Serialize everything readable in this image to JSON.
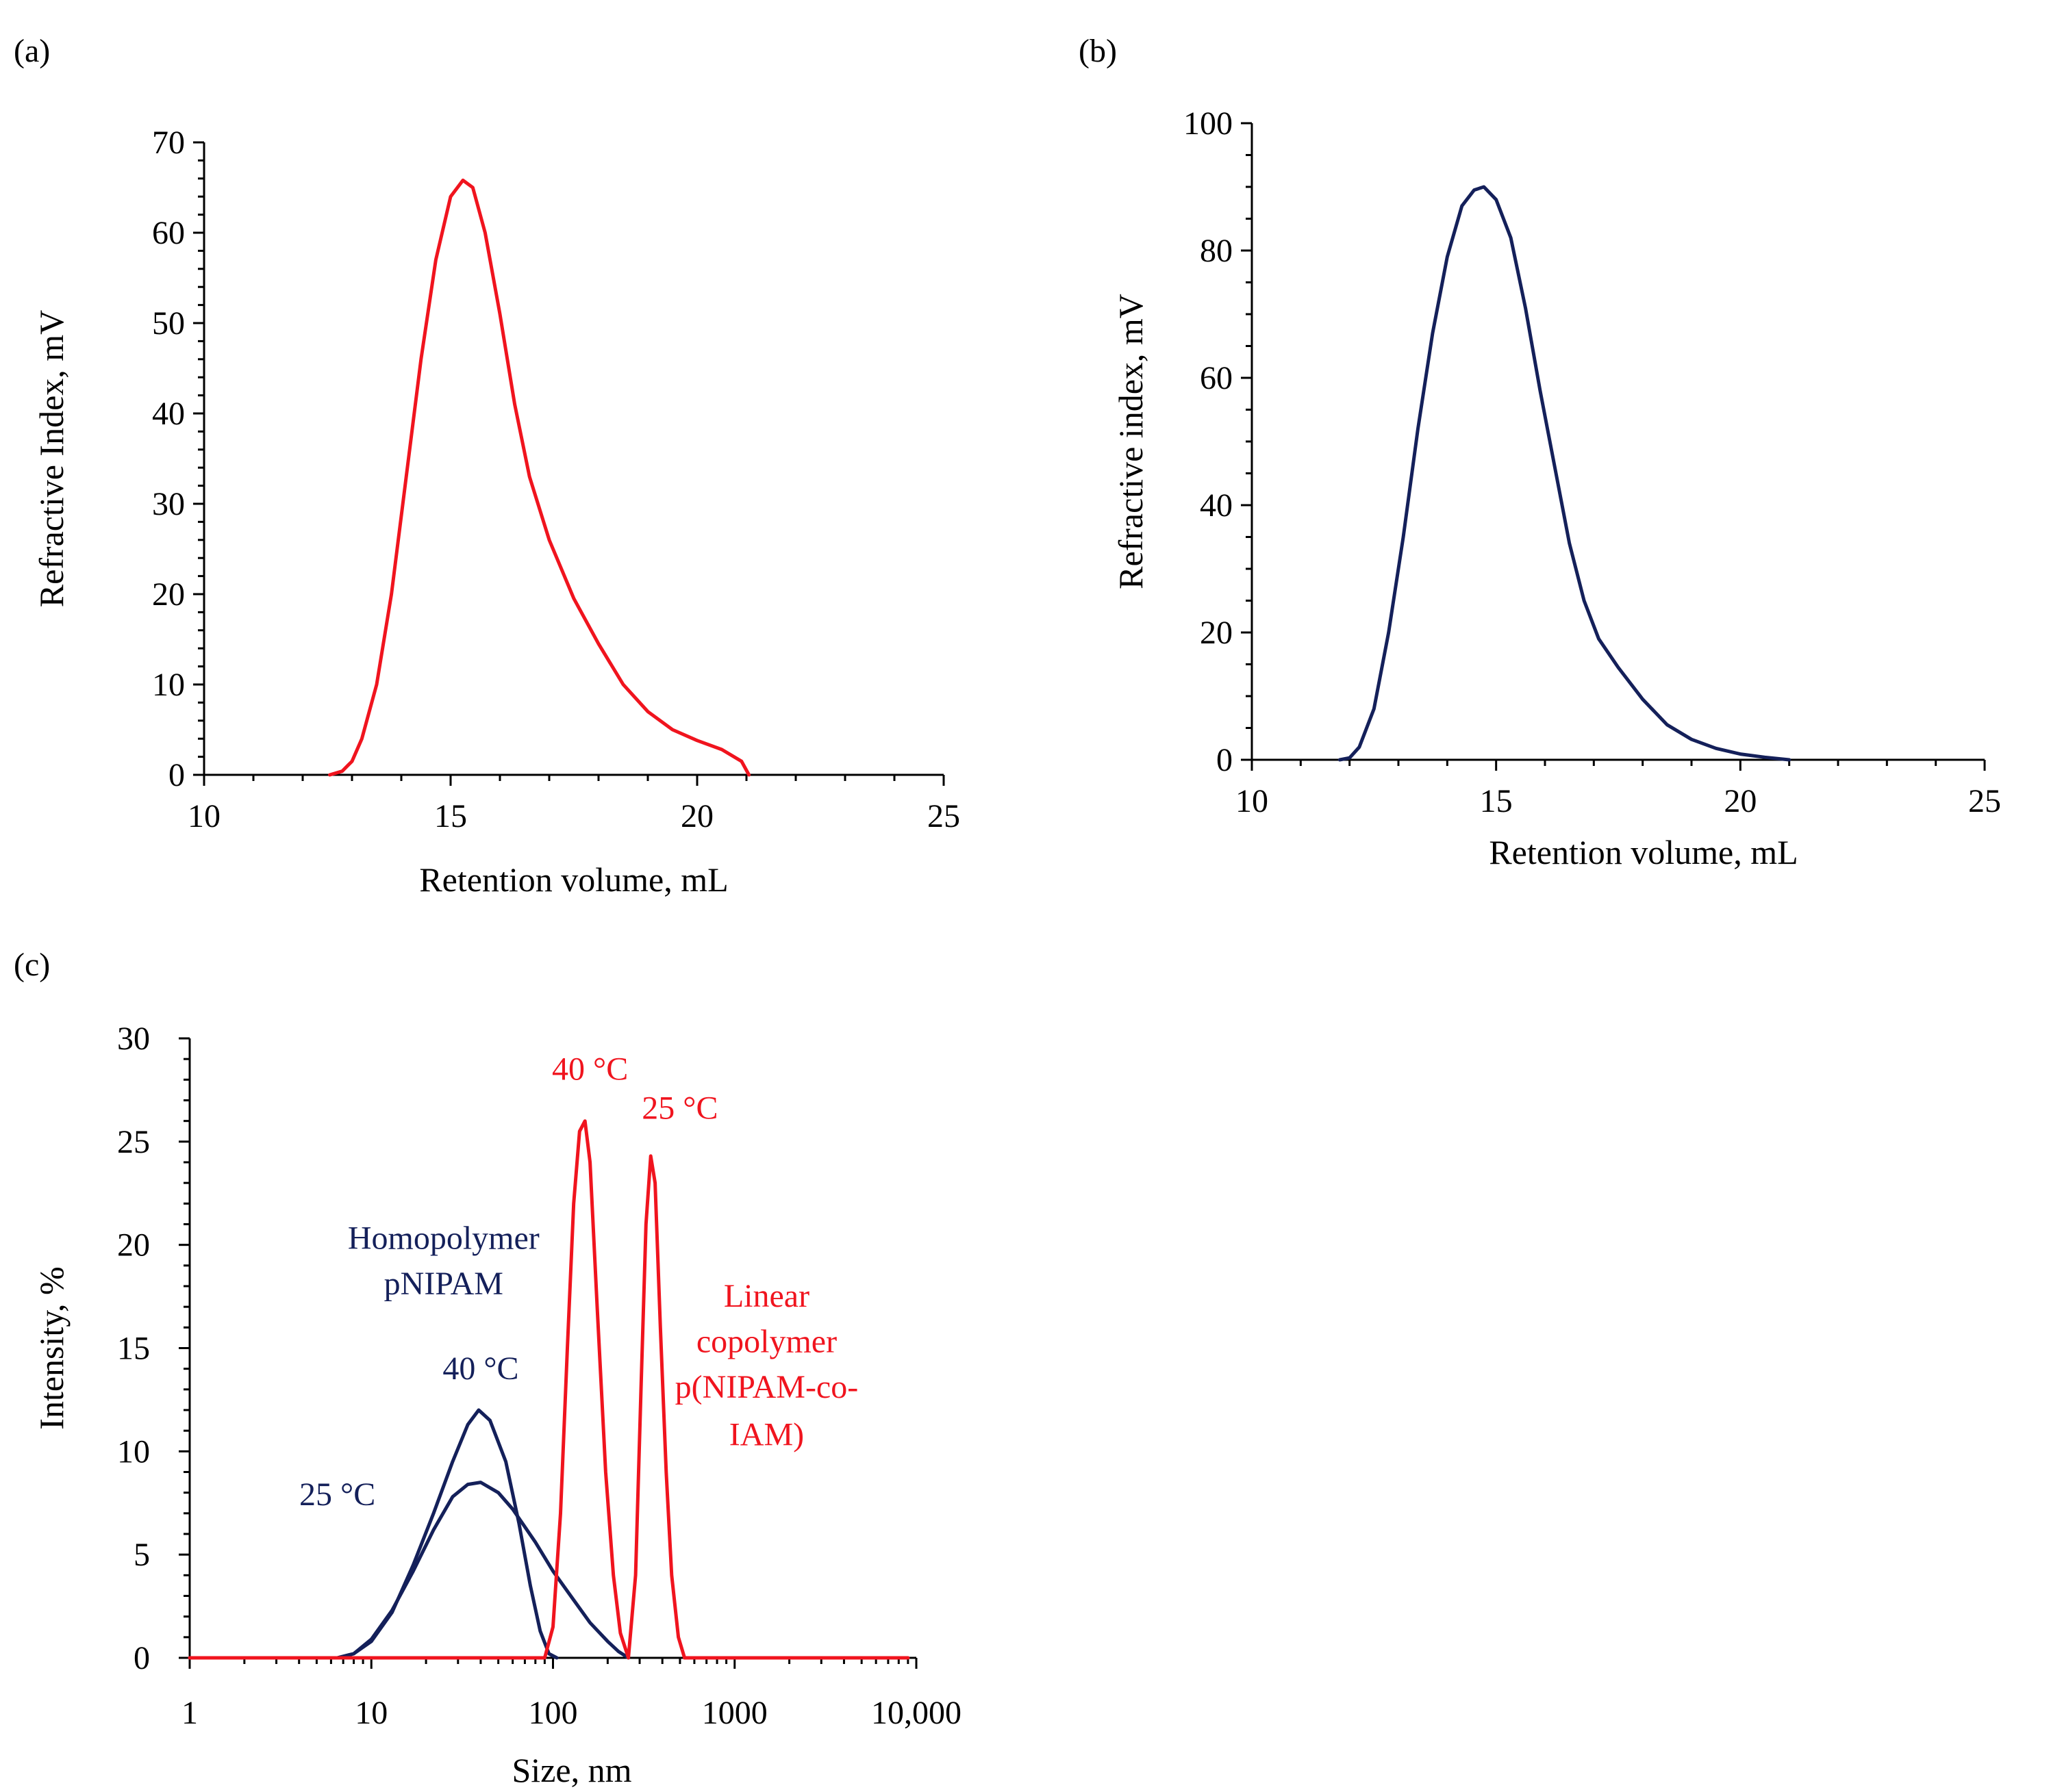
{
  "colors": {
    "red": "#f0141e",
    "navy": "#14205a",
    "axis": "#000000"
  },
  "chart_data": [
    {
      "panel_label": "(a)",
      "type": "line",
      "xlabel": "Retention volume, mL",
      "ylabel": "Refractive Index, mV",
      "xlim": [
        10,
        25
      ],
      "ylim": [
        0,
        70
      ],
      "x_ticks": [
        10,
        15,
        20,
        25
      ],
      "x_minor_step": 1,
      "y_ticks": [
        0,
        10,
        20,
        30,
        40,
        50,
        60,
        70
      ],
      "y_minor_step": 2,
      "series": [
        {
          "color": "red",
          "points": [
            [
              12.55,
              0
            ],
            [
              12.8,
              0.4
            ],
            [
              13.0,
              1.5
            ],
            [
              13.2,
              4
            ],
            [
              13.5,
              10
            ],
            [
              13.8,
              20
            ],
            [
              14.1,
              33
            ],
            [
              14.4,
              46
            ],
            [
              14.7,
              57
            ],
            [
              15.0,
              64
            ],
            [
              15.25,
              65.8
            ],
            [
              15.45,
              65
            ],
            [
              15.7,
              60
            ],
            [
              16.0,
              51
            ],
            [
              16.3,
              41
            ],
            [
              16.6,
              33
            ],
            [
              17.0,
              26
            ],
            [
              17.5,
              19.5
            ],
            [
              18.0,
              14.5
            ],
            [
              18.5,
              10
            ],
            [
              19.0,
              7
            ],
            [
              19.5,
              5
            ],
            [
              20.0,
              3.8
            ],
            [
              20.5,
              2.8
            ],
            [
              20.9,
              1.5
            ],
            [
              21.05,
              0
            ]
          ]
        }
      ]
    },
    {
      "panel_label": "(b)",
      "type": "line",
      "xlabel": "Retention volume, mL",
      "ylabel": "Refractive index, mV",
      "xlim": [
        10,
        25
      ],
      "ylim": [
        0,
        100
      ],
      "x_ticks": [
        10,
        15,
        20,
        25
      ],
      "x_minor_step": 1,
      "y_ticks": [
        0,
        20,
        40,
        60,
        80,
        100
      ],
      "y_minor_step": 5,
      "series": [
        {
          "color": "navy",
          "points": [
            [
              11.8,
              0
            ],
            [
              12.0,
              0.3
            ],
            [
              12.2,
              2
            ],
            [
              12.5,
              8
            ],
            [
              12.8,
              20
            ],
            [
              13.1,
              35
            ],
            [
              13.4,
              52
            ],
            [
              13.7,
              67
            ],
            [
              14.0,
              79
            ],
            [
              14.3,
              87
            ],
            [
              14.55,
              89.5
            ],
            [
              14.75,
              90
            ],
            [
              15.0,
              88
            ],
            [
              15.3,
              82
            ],
            [
              15.6,
              71
            ],
            [
              15.9,
              58
            ],
            [
              16.2,
              46
            ],
            [
              16.5,
              34
            ],
            [
              16.8,
              25
            ],
            [
              17.1,
              19
            ],
            [
              17.5,
              14.5
            ],
            [
              18.0,
              9.5
            ],
            [
              18.5,
              5.5
            ],
            [
              19.0,
              3.2
            ],
            [
              19.5,
              1.8
            ],
            [
              20.0,
              0.9
            ],
            [
              20.5,
              0.4
            ],
            [
              21.0,
              0
            ]
          ]
        }
      ]
    },
    {
      "panel_label": "(c)",
      "type": "line",
      "x_scale": "log",
      "xlabel": "Size, nm",
      "ylabel": "Intensity, %",
      "xlim": [
        1,
        10000
      ],
      "ylim": [
        0,
        30
      ],
      "x_ticks": [
        1,
        10,
        100,
        1000,
        10000
      ],
      "x_tick_labels": [
        "1",
        "10",
        "100",
        "1000",
        "10,000"
      ],
      "y_ticks": [
        0,
        5,
        10,
        15,
        20,
        25,
        30
      ],
      "y_minor_step": 1,
      "series": [
        {
          "color": "navy",
          "points": [
            [
              1,
              0
            ],
            [
              6.5,
              0
            ],
            [
              8,
              0.2
            ],
            [
              10,
              0.8
            ],
            [
              13,
              2.2
            ],
            [
              17,
              4.5
            ],
            [
              22,
              7
            ],
            [
              28,
              9.5
            ],
            [
              34,
              11.3
            ],
            [
              39,
              12
            ],
            [
              45,
              11.5
            ],
            [
              55,
              9.5
            ],
            [
              65,
              6.5
            ],
            [
              75,
              3.5
            ],
            [
              85,
              1.3
            ],
            [
              95,
              0.2
            ],
            [
              105,
              0
            ]
          ]
        },
        {
          "color": "navy",
          "points": [
            [
              6.5,
              0
            ],
            [
              8,
              0.2
            ],
            [
              10,
              0.9
            ],
            [
              13,
              2.3
            ],
            [
              17,
              4.2
            ],
            [
              22,
              6.2
            ],
            [
              28,
              7.8
            ],
            [
              34,
              8.4
            ],
            [
              40,
              8.5
            ],
            [
              50,
              8
            ],
            [
              60,
              7.2
            ],
            [
              80,
              5.6
            ],
            [
              100,
              4.2
            ],
            [
              130,
              2.8
            ],
            [
              160,
              1.7
            ],
            [
              200,
              0.8
            ],
            [
              230,
              0.3
            ],
            [
              260,
              0
            ]
          ]
        },
        {
          "color": "red",
          "points": [
            [
              1,
              0
            ],
            [
              90,
              0
            ],
            [
              100,
              1.5
            ],
            [
              110,
              7
            ],
            [
              120,
              15
            ],
            [
              130,
              22
            ],
            [
              140,
              25.5
            ],
            [
              150,
              26
            ],
            [
              160,
              24
            ],
            [
              175,
              17
            ],
            [
              195,
              9
            ],
            [
              215,
              4
            ],
            [
              235,
              1.2
            ],
            [
              260,
              0
            ],
            [
              285,
              4
            ],
            [
              305,
              13
            ],
            [
              325,
              21
            ],
            [
              345,
              24.3
            ],
            [
              365,
              23
            ],
            [
              390,
              16
            ],
            [
              420,
              9
            ],
            [
              450,
              4
            ],
            [
              490,
              1
            ],
            [
              530,
              0
            ],
            [
              9000,
              0
            ]
          ]
        }
      ],
      "annotations": [
        {
          "text": "Homopolymer",
          "color": "navy",
          "x": 25,
          "y": 19.8
        },
        {
          "text": "pNIPAM",
          "color": "navy",
          "x": 25,
          "y": 17.6
        },
        {
          "text": "40 °C",
          "color": "navy",
          "x": 40,
          "y": 13.5
        },
        {
          "text": "25 °C",
          "color": "navy",
          "x": 6.5,
          "y": 7.4
        },
        {
          "text": "40 °C",
          "color": "red",
          "x": 160,
          "y": 28
        },
        {
          "text": "25 °C",
          "color": "red",
          "x": 500,
          "y": 26.1
        },
        {
          "text": "Linear",
          "color": "red",
          "x": 1500,
          "y": 17
        },
        {
          "text": "copolymer",
          "color": "red",
          "x": 1500,
          "y": 14.8
        },
        {
          "text": "p(NIPAM-co-",
          "color": "red",
          "x": 1500,
          "y": 12.6
        },
        {
          "text": "IAM)",
          "color": "red",
          "x": 1500,
          "y": 10.3
        }
      ]
    }
  ]
}
